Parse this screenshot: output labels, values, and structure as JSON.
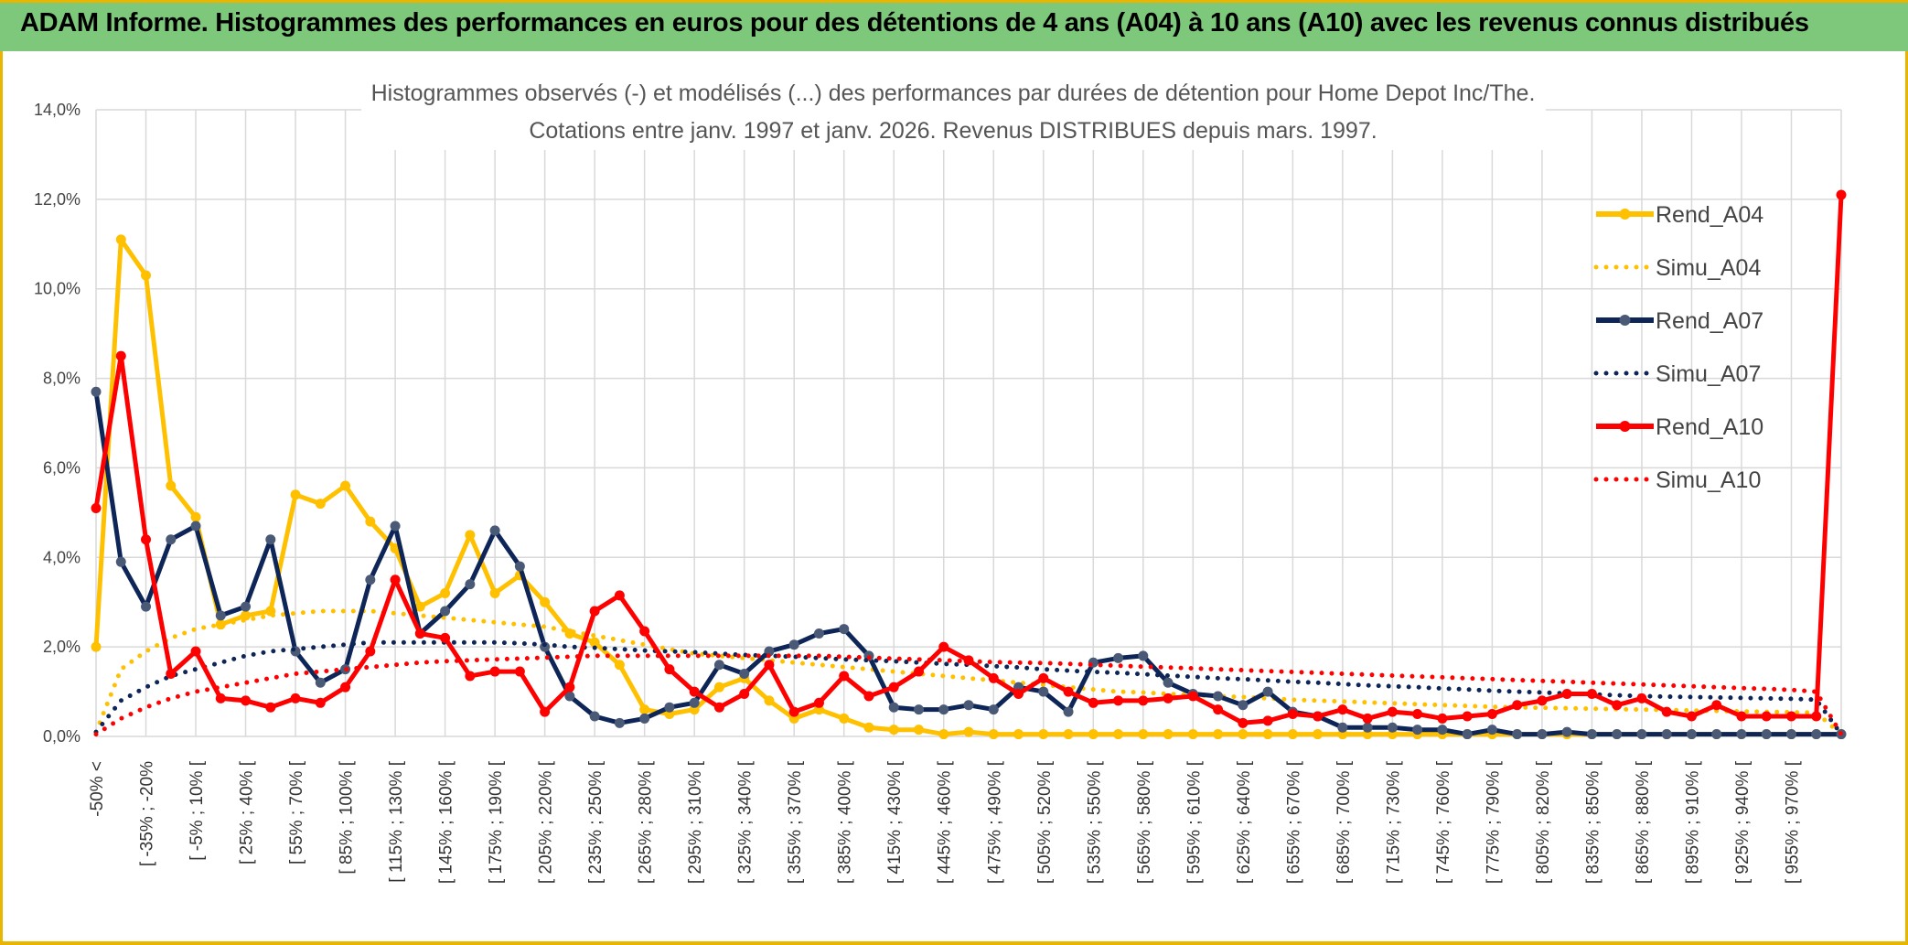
{
  "header": {
    "title": "ADAM Informe. Histogrammes des performances en euros pour des détentions de 4 ans (A04) à 10 ans (A10) avec les revenus connus distribués"
  },
  "chart_data": {
    "type": "line",
    "title": "Histogrammes observés (-) et modélisés (...) des performances par durées de détention pour Home Depot Inc/The.",
    "subtitle": "Cotations entre janv. 1997 et janv. 2026. Revenus DISTRIBUES depuis mars. 1997.",
    "ylim": [
      0,
      14
    ],
    "y_ticks": [
      "0,0%",
      "2,0%",
      "4,0%",
      "6,0%",
      "8,0%",
      "10,0%",
      "12,0%",
      "14,0%"
    ],
    "y_unit": "%",
    "x_tick_labels": [
      "-50% <",
      "[ -35% ; -20%",
      "[ -5% ; 10% [",
      "[ 25% ; 40% [",
      "[ 55% ; 70% [",
      "[ 85% ; 100% [",
      "[ 115% ; 130% [",
      "[ 145% ; 160% [",
      "[ 175% ; 190% [",
      "[ 205% ; 220% [",
      "[ 235% ; 250% [",
      "[ 265% ; 280% [",
      "[ 295% ; 310% [",
      "[ 325% ; 340% [",
      "[ 355% ; 370% [",
      "[ 385% ; 400% [",
      "[ 415% ; 430% [",
      "[ 445% ; 460% [",
      "[ 475% ; 490% [",
      "[ 505% ; 520% [",
      "[ 535% ; 550% [",
      "[ 565% ; 580% [",
      "[ 595% ; 610% [",
      "[ 625% ; 640% [",
      "[ 655% ; 670% [",
      "[ 685% ; 700% [",
      "[ 715% ; 730% [",
      "[ 745% ; 760% [",
      "[ 775% ; 790% [",
      "[ 805% ; 820% [",
      "[ 835% ; 850% [",
      "[ 865% ; 880% [",
      "[ 895% ; 910% [",
      "[ 925% ; 940% [",
      "[ 955% ; 970% ["
    ],
    "legend_position": "right",
    "grid": true,
    "series": [
      {
        "name": "Rend_A04",
        "style": "solid",
        "color": "#ffc000",
        "marker": "#ffc000",
        "values": [
          2.0,
          11.1,
          10.3,
          5.6,
          4.9,
          2.5,
          2.7,
          2.8,
          5.4,
          5.2,
          5.6,
          4.8,
          4.2,
          2.9,
          3.2,
          4.5,
          3.2,
          3.6,
          3.0,
          2.3,
          2.1,
          1.6,
          0.6,
          0.5,
          0.6,
          1.1,
          1.3,
          0.8,
          0.4,
          0.6,
          0.4,
          0.2,
          0.15,
          0.15,
          0.05,
          0.1,
          0.05,
          0.05,
          0.05,
          0.05,
          0.05,
          0.05,
          0.05,
          0.05,
          0.05,
          0.05,
          0.05,
          0.05,
          0.05,
          0.05,
          0.05,
          0.05,
          0.05,
          0.05,
          0.05,
          0.05,
          0.05,
          0.05,
          0.05,
          0.05,
          0.05,
          0.05,
          0.05,
          0.05,
          0.05,
          0.05,
          0.05,
          0.05,
          0.05,
          0.05,
          0.05
        ]
      },
      {
        "name": "Simu_A04",
        "style": "dotted",
        "color": "#ffc000",
        "values": [
          0.1,
          1.5,
          1.9,
          2.2,
          2.4,
          2.5,
          2.6,
          2.7,
          2.75,
          2.8,
          2.8,
          2.8,
          2.75,
          2.7,
          2.65,
          2.6,
          2.55,
          2.5,
          2.45,
          2.35,
          2.25,
          2.15,
          2.05,
          1.95,
          1.85,
          1.8,
          1.75,
          1.7,
          1.65,
          1.6,
          1.55,
          1.5,
          1.45,
          1.4,
          1.35,
          1.3,
          1.25,
          1.2,
          1.15,
          1.1,
          1.05,
          1.0,
          0.98,
          0.95,
          0.92,
          0.9,
          0.88,
          0.85,
          0.82,
          0.8,
          0.78,
          0.76,
          0.74,
          0.72,
          0.7,
          0.68,
          0.66,
          0.65,
          0.64,
          0.63,
          0.62,
          0.61,
          0.6,
          0.59,
          0.58,
          0.57,
          0.56,
          0.55,
          0.54,
          0.53,
          0.05
        ]
      },
      {
        "name": "Rend_A07",
        "style": "solid",
        "color": "#0e2557",
        "marker": "#4a5a76",
        "values": [
          7.7,
          3.9,
          2.9,
          4.4,
          4.7,
          2.7,
          2.9,
          4.4,
          1.9,
          1.2,
          1.5,
          3.5,
          4.7,
          2.3,
          2.8,
          3.4,
          4.6,
          3.8,
          2.0,
          0.9,
          0.45,
          0.3,
          0.4,
          0.65,
          0.75,
          1.6,
          1.4,
          1.9,
          2.05,
          2.3,
          2.4,
          1.8,
          0.65,
          0.6,
          0.6,
          0.7,
          0.6,
          1.1,
          1.0,
          0.55,
          1.65,
          1.75,
          1.8,
          1.2,
          0.95,
          0.9,
          0.7,
          1.0,
          0.55,
          0.45,
          0.2,
          0.2,
          0.2,
          0.15,
          0.15,
          0.05,
          0.15,
          0.05,
          0.05,
          0.1,
          0.05,
          0.05,
          0.05,
          0.05,
          0.05,
          0.05,
          0.05,
          0.05,
          0.05,
          0.05,
          0.05
        ]
      },
      {
        "name": "Simu_A07",
        "style": "dotted",
        "color": "#0e2557",
        "values": [
          0.1,
          0.8,
          1.1,
          1.35,
          1.5,
          1.65,
          1.8,
          1.9,
          1.95,
          2.0,
          2.05,
          2.1,
          2.1,
          2.1,
          2.1,
          2.1,
          2.1,
          2.08,
          2.05,
          2.0,
          1.98,
          1.95,
          1.92,
          1.9,
          1.88,
          1.85,
          1.82,
          1.8,
          1.78,
          1.75,
          1.72,
          1.7,
          1.68,
          1.65,
          1.62,
          1.6,
          1.57,
          1.54,
          1.5,
          1.47,
          1.44,
          1.42,
          1.39,
          1.36,
          1.33,
          1.3,
          1.28,
          1.25,
          1.22,
          1.2,
          1.17,
          1.14,
          1.12,
          1.1,
          1.07,
          1.05,
          1.02,
          1.0,
          0.98,
          0.96,
          0.94,
          0.92,
          0.9,
          0.89,
          0.88,
          0.87,
          0.86,
          0.85,
          0.84,
          0.82,
          0.05
        ]
      },
      {
        "name": "Rend_A10",
        "style": "solid",
        "color": "#ff0000",
        "marker": "#ff0000",
        "values": [
          5.1,
          8.5,
          4.4,
          1.4,
          1.9,
          0.85,
          0.8,
          0.65,
          0.85,
          0.75,
          1.1,
          1.9,
          3.5,
          2.3,
          2.2,
          1.35,
          1.45,
          1.45,
          0.55,
          1.1,
          2.8,
          3.15,
          2.35,
          1.5,
          1.0,
          0.65,
          0.95,
          1.6,
          0.55,
          0.75,
          1.35,
          0.9,
          1.1,
          1.45,
          2.0,
          1.7,
          1.3,
          0.95,
          1.3,
          1.0,
          0.75,
          0.8,
          0.8,
          0.85,
          0.9,
          0.6,
          0.3,
          0.35,
          0.5,
          0.45,
          0.6,
          0.4,
          0.55,
          0.5,
          0.4,
          0.45,
          0.5,
          0.7,
          0.8,
          0.95,
          0.95,
          0.7,
          0.85,
          0.55,
          0.45,
          0.7,
          0.45,
          0.45,
          0.45,
          0.45,
          12.1
        ]
      },
      {
        "name": "Simu_A10",
        "style": "dotted",
        "color": "#ff0000",
        "values": [
          0.05,
          0.4,
          0.65,
          0.85,
          1.0,
          1.1,
          1.2,
          1.3,
          1.4,
          1.45,
          1.5,
          1.55,
          1.6,
          1.65,
          1.68,
          1.7,
          1.72,
          1.74,
          1.76,
          1.78,
          1.8,
          1.8,
          1.8,
          1.8,
          1.8,
          1.8,
          1.8,
          1.8,
          1.8,
          1.8,
          1.78,
          1.76,
          1.74,
          1.72,
          1.7,
          1.68,
          1.66,
          1.65,
          1.64,
          1.62,
          1.6,
          1.58,
          1.56,
          1.54,
          1.52,
          1.5,
          1.48,
          1.46,
          1.44,
          1.42,
          1.4,
          1.38,
          1.36,
          1.34,
          1.32,
          1.3,
          1.28,
          1.26,
          1.24,
          1.22,
          1.2,
          1.18,
          1.16,
          1.14,
          1.12,
          1.1,
          1.08,
          1.06,
          1.04,
          1.0,
          0.05
        ]
      }
    ]
  }
}
